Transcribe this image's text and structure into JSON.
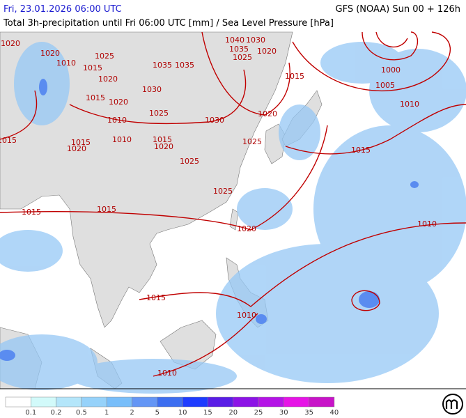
{
  "header": {
    "valid_time": "Fri, 23.01.2026 06:00 UTC",
    "model_run": "GFS (NOAA) Sun 00 + 126h",
    "description": "Total 3h-precipitation until Fri 06:00 UTC [mm] / Sea Level Pressure [hPa]"
  },
  "map": {
    "isobar_labels": [
      "1020",
      "1020",
      "1010",
      "1025",
      "1015",
      "1040",
      "1030",
      "1035",
      "1025",
      "1020",
      "1035",
      "1035",
      "1020",
      "1030",
      "1015",
      "1000",
      "1005",
      "1015",
      "1020",
      "1025",
      "1010",
      "1020",
      "1030",
      "1010",
      "1015",
      "1015",
      "1010",
      "1015",
      "1020",
      "1025",
      "1020",
      "1015",
      "1025",
      "1025",
      "1015",
      "1015",
      "1020",
      "1010",
      "1015",
      "1010",
      "1010"
    ]
  },
  "legend": {
    "labels": [
      "0.1",
      "0.2",
      "0.5",
      "1",
      "2",
      "5",
      "10",
      "15",
      "20",
      "25",
      "30",
      "35",
      "40"
    ],
    "colors": [
      "#ffffff",
      "#d2fafa",
      "#b4e6fa",
      "#96d2fa",
      "#78befa",
      "#6496f5",
      "#3c6ef0",
      "#1e3cff",
      "#5a1ee6",
      "#8c14e6",
      "#b414e6",
      "#e614e6",
      "#c814c8"
    ]
  }
}
